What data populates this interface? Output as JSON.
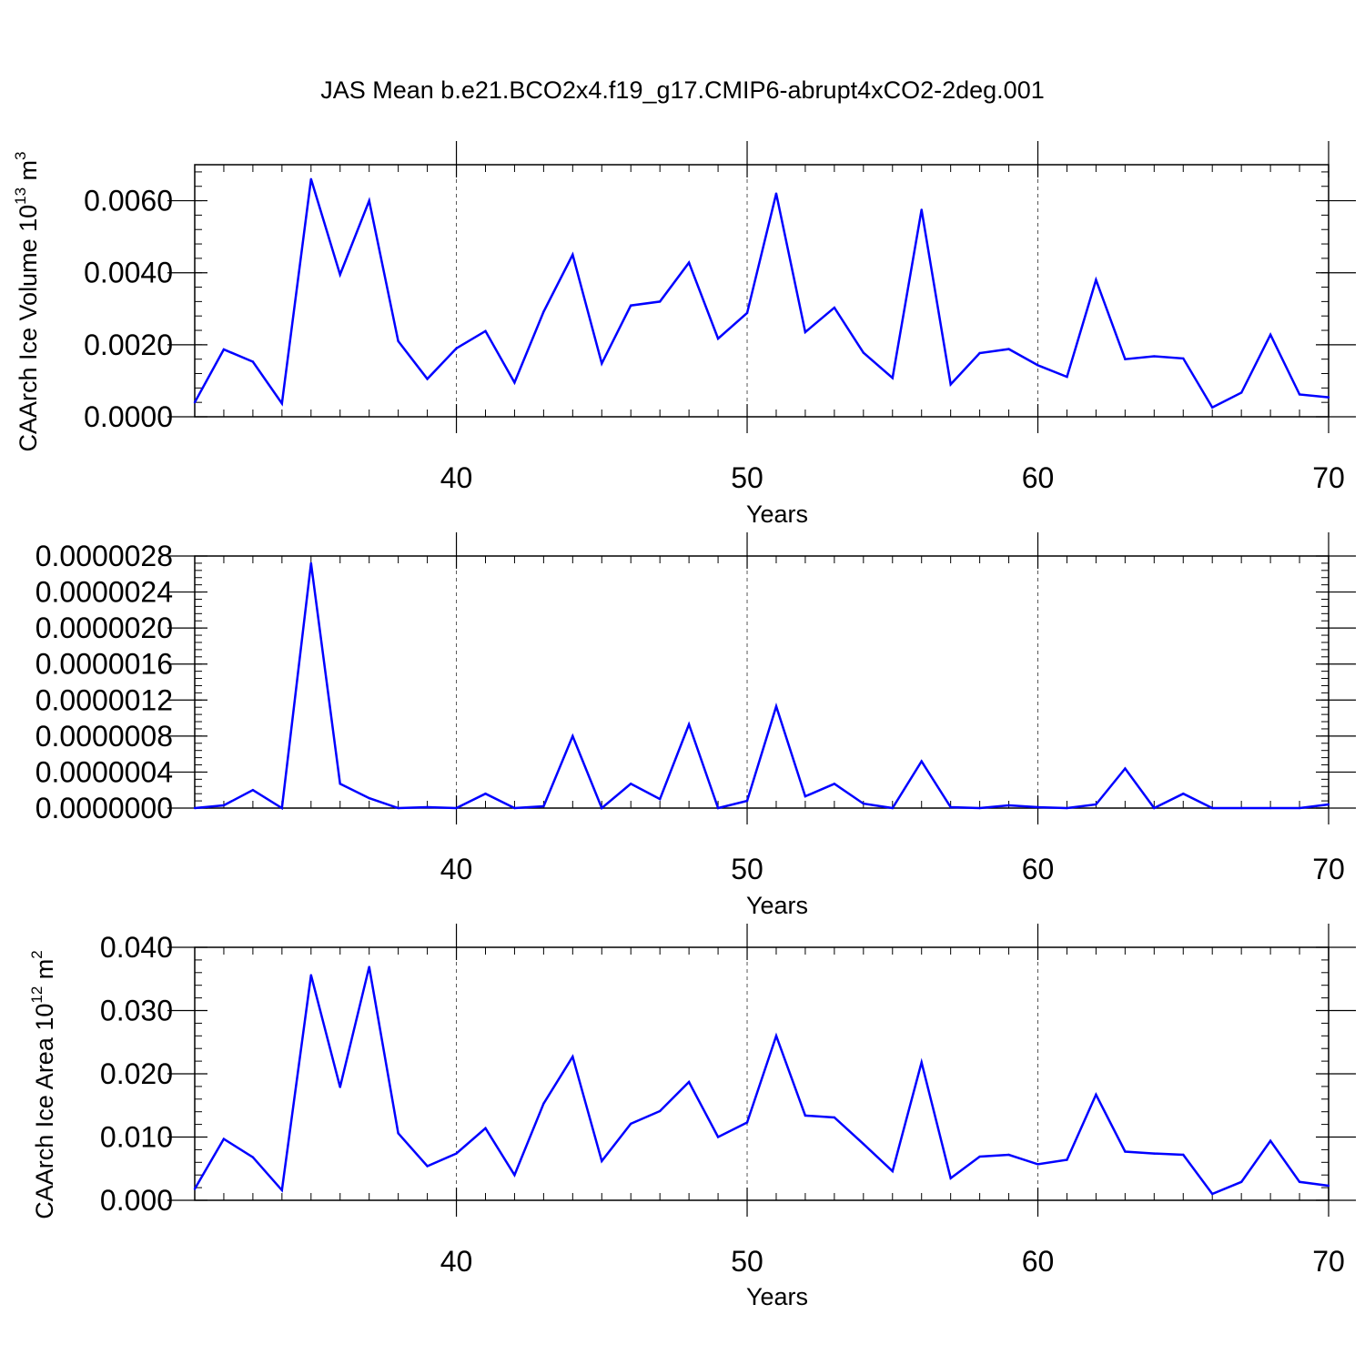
{
  "title": "JAS Mean b.e21.BCO2x4.f19_g17.CMIP6-abrupt4xCO2-2deg.001",
  "colors": {
    "line": "#0000ff",
    "axis": "#000000",
    "grid": "#555555"
  },
  "chart_data": [
    {
      "type": "line",
      "title": "JAS Mean b.e21.BCO2x4.f19_g17.CMIP6-abrupt4xCO2-2deg.001",
      "xlabel": "Years",
      "ylabel": {
        "main": "CAArch Ice Volume 10",
        "exp": "13",
        "unit": " m",
        "unit_exp": "3"
      },
      "xlim": [
        31,
        70
      ],
      "ylim": [
        0,
        0.007
      ],
      "xticks": [
        40,
        50,
        60,
        70
      ],
      "yticks": [
        0.0,
        0.002,
        0.004,
        0.006
      ],
      "ytick_labels": [
        "0.0000",
        "0.0020",
        "0.0040",
        "0.0060"
      ],
      "grid": "vertical dashed at major x ticks",
      "x": [
        31,
        32,
        33,
        34,
        35,
        36,
        37,
        38,
        39,
        40,
        41,
        42,
        43,
        44,
        45,
        46,
        47,
        48,
        49,
        50,
        51,
        52,
        53,
        54,
        55,
        56,
        57,
        58,
        59,
        60,
        61,
        62,
        63,
        64,
        65,
        66,
        67,
        68,
        69,
        70
      ],
      "values": [
        0.0004,
        0.00187,
        0.00153,
        0.00037,
        0.0066,
        0.00395,
        0.006,
        0.0021,
        0.00105,
        0.0019,
        0.00238,
        0.00095,
        0.00292,
        0.0045,
        0.00148,
        0.00309,
        0.0032,
        0.00428,
        0.00217,
        0.00288,
        0.0062,
        0.00235,
        0.00303,
        0.00178,
        0.00108,
        0.00575,
        0.0009,
        0.00177,
        0.00188,
        0.00143,
        0.00111,
        0.0038,
        0.0016,
        0.00168,
        0.00162,
        0.00026,
        0.00067,
        0.00228,
        0.00062,
        0.00054
      ]
    },
    {
      "type": "line",
      "xlabel": "Years",
      "ylabel": "",
      "xlim": [
        31,
        70
      ],
      "ylim": [
        0,
        2.8e-06
      ],
      "xticks": [
        40,
        50,
        60,
        70
      ],
      "yticks": [
        0,
        4e-07,
        8e-07,
        1.2e-06,
        1.6e-06,
        2e-06,
        2.4e-06,
        2.8e-06
      ],
      "ytick_labels": [
        "0.0000000",
        "0.0000004",
        "0.0000008",
        "0.0000012",
        "0.0000016",
        "0.0000020",
        "0.0000024",
        "0.0000028"
      ],
      "grid": "vertical dashed at major x ticks",
      "x": [
        31,
        32,
        33,
        34,
        35,
        36,
        37,
        38,
        39,
        40,
        41,
        42,
        43,
        44,
        45,
        46,
        47,
        48,
        49,
        50,
        51,
        52,
        53,
        54,
        55,
        56,
        57,
        58,
        59,
        60,
        61,
        62,
        63,
        64,
        65,
        66,
        67,
        68,
        69,
        70
      ],
      "values": [
        0.0,
        3e-08,
        2e-07,
        0.0,
        2.72e-06,
        2.7e-07,
        1.1e-07,
        0.0,
        1e-08,
        0.0,
        1.6e-07,
        0.0,
        2e-08,
        8e-07,
        0.0,
        2.7e-07,
        1e-07,
        9.3e-07,
        0.0,
        8e-08,
        1.13e-06,
        1.3e-07,
        2.7e-07,
        5e-08,
        0.0,
        5.2e-07,
        1e-08,
        0.0,
        3e-08,
        1e-08,
        0.0,
        4e-08,
        4.4e-07,
        0.0,
        1.6e-07,
        0.0,
        0.0,
        0.0,
        0.0,
        4e-08
      ]
    },
    {
      "type": "line",
      "xlabel": "Years",
      "ylabel": {
        "main": "CAArch Ice Area 10",
        "exp": "12",
        "unit": " m",
        "unit_exp": "2"
      },
      "xlim": [
        31,
        70
      ],
      "ylim": [
        0,
        0.04
      ],
      "xticks": [
        40,
        50,
        60,
        70
      ],
      "yticks": [
        0.0,
        0.01,
        0.02,
        0.03,
        0.04
      ],
      "ytick_labels": [
        "0.000",
        "0.010",
        "0.020",
        "0.030",
        "0.040"
      ],
      "grid": "vertical dashed at major x ticks",
      "x": [
        31,
        32,
        33,
        34,
        35,
        36,
        37,
        38,
        39,
        40,
        41,
        42,
        43,
        44,
        45,
        46,
        47,
        48,
        49,
        50,
        51,
        52,
        53,
        54,
        55,
        56,
        57,
        58,
        59,
        60,
        61,
        62,
        63,
        64,
        65,
        66,
        67,
        68,
        69,
        70
      ],
      "values": [
        0.0018,
        0.0097,
        0.0068,
        0.0016,
        0.0356,
        0.0179,
        0.0369,
        0.0106,
        0.0054,
        0.0074,
        0.0114,
        0.004,
        0.0153,
        0.0227,
        0.0062,
        0.0121,
        0.0141,
        0.0187,
        0.01,
        0.0123,
        0.026,
        0.0134,
        0.0131,
        0.0089,
        0.0046,
        0.0218,
        0.0035,
        0.0069,
        0.0072,
        0.0057,
        0.0064,
        0.0167,
        0.0077,
        0.0074,
        0.0072,
        0.001,
        0.0029,
        0.0094,
        0.0029,
        0.0023
      ]
    }
  ]
}
